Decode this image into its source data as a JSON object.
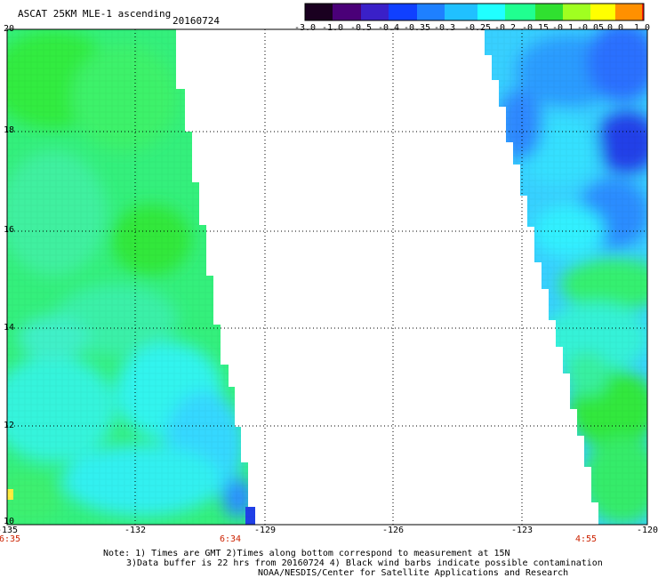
{
  "header": {
    "title": "ASCAT 25KM MLE-1 ascending",
    "date": "20160724"
  },
  "colorbar": {
    "labels": [
      "-3.0",
      "-1.0",
      "-0.5",
      "-0.4",
      "-0.35",
      "-0.3",
      "-0.25",
      "-0.2",
      "-0.15",
      "-0.1",
      "-0.05",
      "0.0",
      "1.0"
    ],
    "colors": [
      "#1a0020",
      "#4a0078",
      "#3a20c8",
      "#1040ff",
      "#1e80ff",
      "#20c0ff",
      "#20ffff",
      "#20ff90",
      "#30e030",
      "#a0ff20",
      "#ffff00",
      "#ff9000",
      "#ff2000"
    ]
  },
  "axes": {
    "y_labels": [
      "20",
      "18",
      "16",
      "14",
      "12",
      "10"
    ],
    "x_labels": [
      "-135",
      "-132",
      "-129",
      "-126",
      "-123",
      "-120"
    ],
    "time_labels": [
      "6:35",
      "6:34",
      "4:55"
    ]
  },
  "notes": {
    "line1": "Note: 1) Times are GMT 2)Times along bottom correspond to measurement at 15N",
    "line2": "3)Data buffer is 22 hrs from 20160724 4) Black wind barbs indicate possible contamination",
    "line3": "NOAA/NESDIS/Center for Satellite Applications and Research"
  },
  "palette": {
    "green": "#32f05a",
    "light_green": "#40f5a0",
    "cyan": "#30f5e6",
    "sky": "#38c8ff",
    "blue": "#2878ff",
    "deep_blue": "#2040e8",
    "yellow": "#ffee40"
  }
}
